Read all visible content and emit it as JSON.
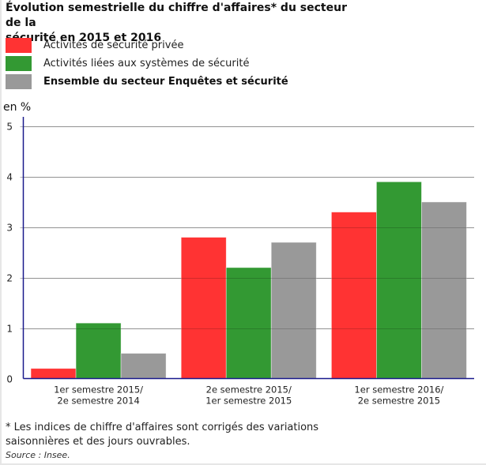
{
  "title_line1": "Évolution semestrielle du chiffre d'affaires* du secteur de la",
  "title_line2": "sécurité en 2015 et 2016",
  "legend": [
    {
      "label": "Activités de sécurité privée",
      "color": "#ff3333",
      "bold": false
    },
    {
      "label": "Activités liées aux systèmes de sécurité",
      "color": "#339933",
      "bold": false
    },
    {
      "label": "Ensemble du secteur Enquêtes et sécurité",
      "color": "#999999",
      "bold": true
    }
  ],
  "unit_label": "en %",
  "footnote": "* Les indices de chiffre d'affaires sont corrigés des variations saisonnières et des jours ouvrables.",
  "source": "Source : Insee.",
  "chart_data": {
    "type": "bar",
    "title": "Évolution semestrielle du chiffre d'affaires* du secteur de la sécurité en 2015 et 2016",
    "xlabel": "",
    "ylabel": "en %",
    "ylim": [
      0,
      5
    ],
    "yticks": [
      "0",
      "1",
      "2",
      "3",
      "4",
      "5"
    ],
    "grid": true,
    "legend_position": "top-left",
    "categories": [
      [
        "1er semestre 2015/",
        "2e semestre 2014"
      ],
      [
        "2e semestre 2015/",
        "1er semestre 2015"
      ],
      [
        "1er semestre 2016/",
        "2e semestre 2015"
      ]
    ],
    "series": [
      {
        "name": "Activités de sécurité privée",
        "color": "#ff3333",
        "values": [
          0.2,
          2.8,
          3.3
        ]
      },
      {
        "name": "Activités liées aux systèmes de sécurité",
        "color": "#339933",
        "values": [
          1.1,
          2.2,
          3.9
        ]
      },
      {
        "name": "Ensemble du secteur Enquêtes et sécurité",
        "color": "#999999",
        "values": [
          0.5,
          2.7,
          3.5
        ]
      }
    ],
    "axis_color": "#1a1a8c",
    "grid_color": "#b3b3b3"
  }
}
